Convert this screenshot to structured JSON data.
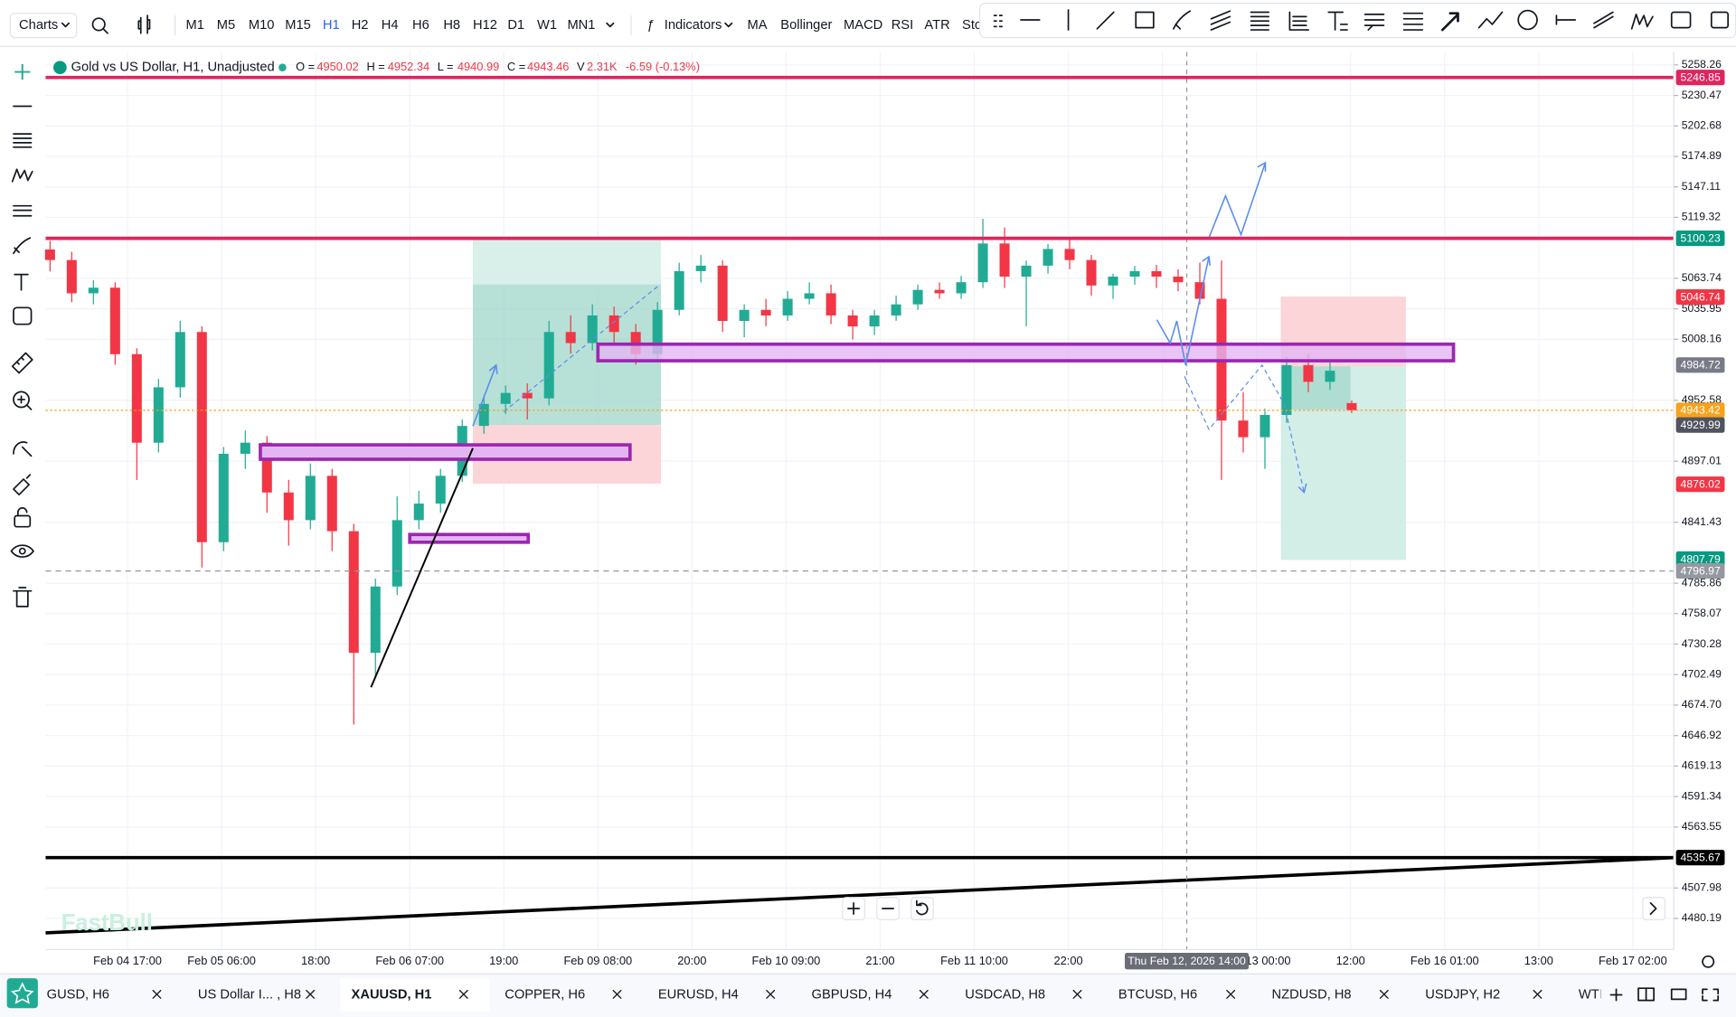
{
  "toolbar": {
    "charts": "Charts",
    "intervals": [
      "M1",
      "M5",
      "M10",
      "M15",
      "H1",
      "H2",
      "H4",
      "H6",
      "H8",
      "H12",
      "D1",
      "W1",
      "MN1"
    ],
    "active_interval": 4,
    "indicators": "Indicators",
    "studies": [
      "MA",
      "Bollinger",
      "MACD",
      "RSI",
      "ATR",
      "Sto"
    ]
  },
  "chart_data": {
    "type": "candlestick",
    "title": "Gold vs US Dollar, H1, Unadjusted",
    "legend": [
      {
        "label": "O =",
        "value": 4950.02
      },
      {
        "label": "H =",
        "value": 4952.34
      },
      {
        "label": "L =",
        "value": 4940.99
      },
      {
        "label": "C =",
        "value": 4943.46
      },
      {
        "label": "V",
        "value": "2.31K"
      }
    ],
    "change": "-6.59 (-0.13%)",
    "up_color": "#22ab94",
    "down_color": "#f23645",
    "candles": [
      [
        5090,
        5098,
        5070,
        5080.4
      ],
      [
        5080.4,
        5088,
        5042,
        5050.1
      ],
      [
        5050.1,
        5062,
        5040,
        5055.2
      ],
      [
        5055.2,
        5060,
        4985,
        4994.6
      ],
      [
        4994.6,
        5000,
        4880,
        4913.9
      ],
      [
        4913.9,
        4972,
        4905,
        4964.4
      ],
      [
        4964.4,
        5025,
        4955,
        5014.8
      ],
      [
        5014.8,
        5020,
        4800,
        4823.2
      ],
      [
        4823.2,
        4910,
        4815,
        4903.8
      ],
      [
        4903.8,
        4925,
        4890,
        4913.9
      ],
      [
        4913.9,
        4920,
        4850,
        4868.5
      ],
      [
        4868.5,
        4880,
        4820,
        4843.3
      ],
      [
        4843.3,
        4895,
        4835,
        4883.7
      ],
      [
        4883.7,
        4890,
        4815,
        4833.2
      ],
      [
        4833.2,
        4840,
        4657,
        4722.3
      ],
      [
        4722.3,
        4790,
        4700,
        4782.8
      ],
      [
        4782.8,
        4865,
        4775,
        4843.3
      ],
      [
        4843.3,
        4870,
        4835,
        4858.4
      ],
      [
        4858.4,
        4890,
        4850,
        4883.7
      ],
      [
        4883.7,
        4935,
        4878,
        4929.2
      ],
      [
        4929.2,
        4955,
        4922,
        4949.3
      ],
      [
        4949.3,
        4966,
        4940,
        4959.3
      ],
      [
        4959.3,
        4968,
        4935,
        4954.3
      ],
      [
        4954.3,
        5025,
        4948,
        5014.8
      ],
      [
        5014.8,
        5030,
        4995,
        5004.7
      ],
      [
        5004.7,
        5040,
        4998,
        5029.9
      ],
      [
        5029.9,
        5038,
        5005,
        5014.8
      ],
      [
        5014.8,
        5022,
        4985,
        4994.6
      ],
      [
        4994.6,
        5042,
        4988,
        5035
      ],
      [
        5035,
        5078,
        5030,
        5070.3
      ],
      [
        5070.3,
        5085,
        5060,
        5075.3
      ],
      [
        5075.3,
        5080,
        5015,
        5024.9
      ],
      [
        5024.9,
        5040,
        5010,
        5035
      ],
      [
        5035,
        5045,
        5020,
        5029.9
      ],
      [
        5029.9,
        5052,
        5025,
        5045.1
      ],
      [
        5045.1,
        5060,
        5040,
        5050.1
      ],
      [
        5050.1,
        5058,
        5022,
        5029.9
      ],
      [
        5029.9,
        5035,
        5008,
        5019.9
      ],
      [
        5019.9,
        5035,
        5012,
        5029.9
      ],
      [
        5029.9,
        5048,
        5025,
        5040
      ],
      [
        5040,
        5058,
        5035,
        5053.2
      ],
      [
        5053.2,
        5060,
        5045,
        5050.1
      ],
      [
        5050.1,
        5066,
        5045,
        5060.2
      ],
      [
        5060.2,
        5118,
        5055,
        5095.5
      ],
      [
        5095.5,
        5110,
        5055,
        5065.3
      ],
      [
        5065.3,
        5080,
        5020,
        5075.3
      ],
      [
        5075.3,
        5095,
        5068,
        5090.5
      ],
      [
        5090.5,
        5100,
        5072,
        5080.4
      ],
      [
        5080.4,
        5085,
        5048,
        5057.2
      ],
      [
        5057.2,
        5068,
        5045,
        5065.3
      ],
      [
        5065.3,
        5075,
        5058,
        5070.3
      ],
      [
        5070.3,
        5076,
        5055,
        5065.3
      ],
      [
        5065.3,
        5072,
        5052,
        5060.2
      ],
      [
        5060.2,
        5078,
        5040,
        5045.1
      ],
      [
        5045.1,
        5080,
        4880,
        4934.1
      ],
      [
        4934.1,
        4960,
        4905,
        4918.9
      ],
      [
        4918.9,
        4945,
        4890,
        4939.2
      ],
      [
        4939.2,
        4992,
        4932,
        4984.6
      ],
      [
        4984.6,
        4995,
        4960,
        4969.4
      ],
      [
        4969.4,
        4988,
        4962,
        4979.5
      ],
      [
        4950.02,
        4952.34,
        4940.99,
        4943.46
      ]
    ],
    "ylim": [
      4451.9,
      5270.05
    ],
    "yticks": [
      5258.26,
      5230.47,
      5202.68,
      5174.89,
      5147.11,
      5119.32,
      5063.74,
      5035.95,
      5008.16,
      4952.58,
      4897.01,
      4841.43,
      4785.86,
      4758.07,
      4730.28,
      4702.49,
      {
        "value": 4674.7,
        "label": "4674.70"
      },
      4646.92,
      4619.13,
      4591.34,
      4563.55,
      4507.98,
      4480.19
    ],
    "xticks": [
      "Feb 04 17:00",
      "Feb 05 06:00",
      "18:00",
      "Feb 06 07:00",
      "19:00",
      "Feb 09 08:00",
      "20:00",
      "Feb 10 09:00",
      "21:00",
      "Feb 11 10:00",
      "22:00",
      null,
      "Feb 13 00:00",
      "12:00",
      "Feb 16 01:00",
      "13:00",
      "Feb 17 02:00"
    ],
    "crosshair_label": "Thu Feb 12, 2026 14:00",
    "price_tags": [
      {
        "value": 5246.85,
        "color": "#e0245e",
        "line": "solid",
        "line_color": "#e0245e"
      },
      {
        "value": 5100.23,
        "color": "#089981",
        "line": "solid",
        "line_color": "#e0245e"
      },
      {
        "value": 5046.74,
        "color": "#f23645"
      },
      {
        "value": 4984.72,
        "color": "#787b86"
      },
      {
        "value": 4943.42,
        "color": "#f7a21b",
        "line": "dotted",
        "line_color": "#f7a21b"
      },
      {
        "value": 4929.99,
        "color": "#50535e"
      },
      {
        "value": 4876.02,
        "color": "#f23645"
      },
      {
        "value": 4807.79,
        "color": "#089981"
      },
      {
        "value": 4796.97,
        "color": "#9598a1",
        "line": "dashed",
        "line_color": "#9598a1"
      },
      {
        "value": 4535.67,
        "color": "#000000",
        "line": "solid",
        "line_color": "#000000"
      }
    ],
    "grid": true,
    "watermark": "FastBull"
  },
  "tabs": {
    "items": [
      "GUSD, H6",
      "US Dollar I... , H8",
      "XAUUSD, H1",
      "COPPER, H6",
      "EURUSD, H4",
      "GBPUSD, H4",
      "USDCAD, H8",
      "BTCUSD, H6",
      "NZDUSD, H8",
      "USDJPY, H2",
      "WTI, I"
    ],
    "active": 2
  }
}
